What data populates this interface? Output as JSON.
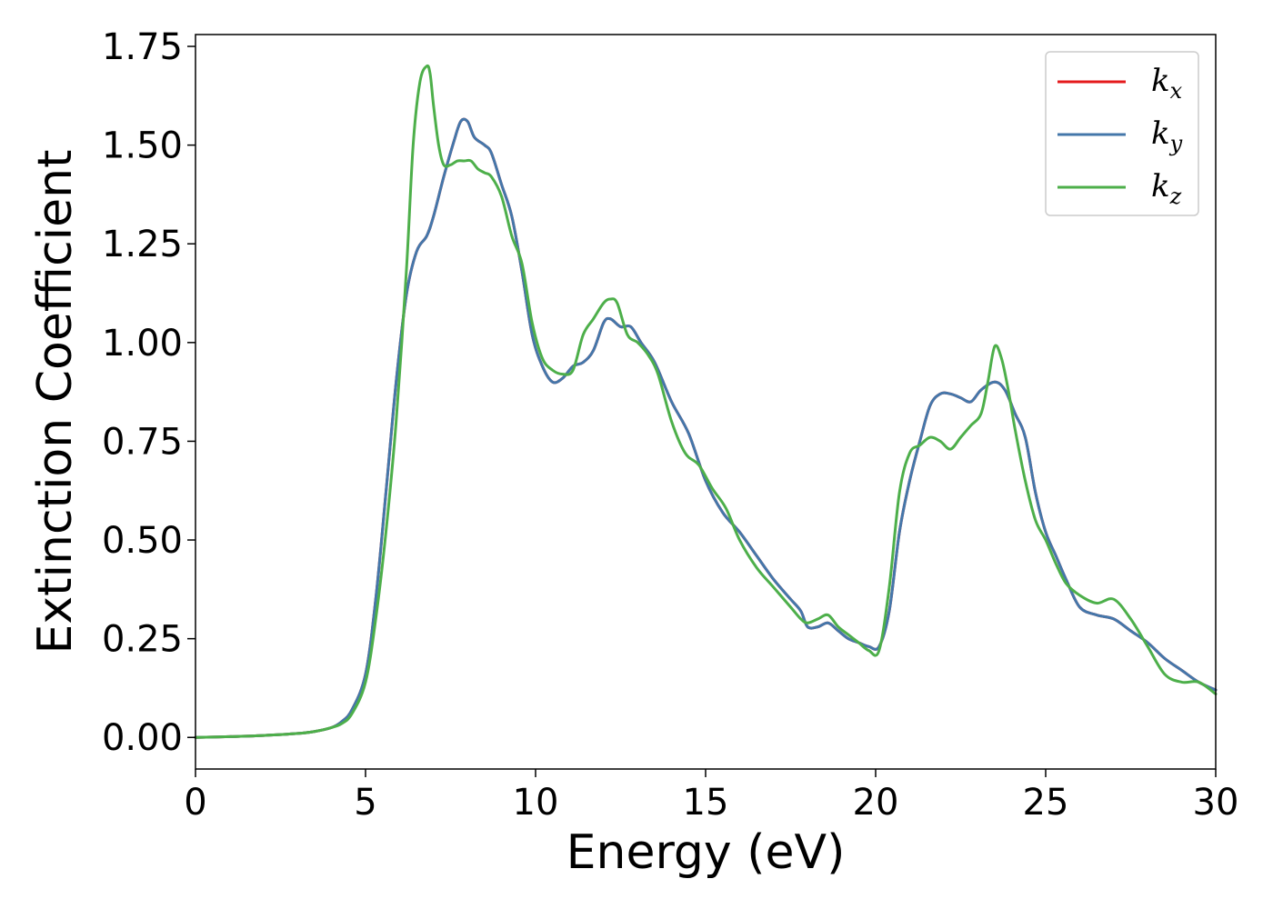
{
  "chart_data": {
    "type": "line",
    "xlabel": "Energy (eV)",
    "ylabel": "Extinction Coefficient",
    "xlim": [
      0,
      30
    ],
    "ylim": [
      -0.08,
      1.78
    ],
    "xticks": [
      0,
      5,
      10,
      15,
      20,
      25,
      30
    ],
    "xtick_labels": [
      "0",
      "5",
      "10",
      "15",
      "20",
      "25",
      "30"
    ],
    "yticks": [
      0,
      0.25,
      0.5,
      0.75,
      1.0,
      1.25,
      1.5,
      1.75
    ],
    "ytick_labels": [
      "0.00",
      "0.25",
      "0.50",
      "0.75",
      "1.00",
      "1.25",
      "1.50",
      "1.75"
    ],
    "grid": false,
    "legend_position": "top-right",
    "series": [
      {
        "name": "k",
        "subscript": "x",
        "color": "#e41a1c",
        "x": [
          0,
          1,
          2,
          3,
          3.5,
          4,
          4.3,
          4.6,
          5,
          5.3,
          5.6,
          5.9,
          6.2,
          6.5,
          6.8,
          7.0,
          7.3,
          7.6,
          7.8,
          8.0,
          8.2,
          8.5,
          8.7,
          9.0,
          9.3,
          9.6,
          9.9,
          10.2,
          10.5,
          10.8,
          11.1,
          11.4,
          11.7,
          12.0,
          12.2,
          12.5,
          12.8,
          13.1,
          13.5,
          14.0,
          14.5,
          15.0,
          15.5,
          16.0,
          16.5,
          17.0,
          17.5,
          17.8,
          18.0,
          18.3,
          18.6,
          18.9,
          19.2,
          19.5,
          19.8,
          20.1,
          20.4,
          20.7,
          21.0,
          21.3,
          21.6,
          21.9,
          22.2,
          22.5,
          22.8,
          23.1,
          23.5,
          23.8,
          24.1,
          24.4,
          24.7,
          25.0,
          25.3,
          25.6,
          26.0,
          26.5,
          27.0,
          27.5,
          28.0,
          28.5,
          29.0,
          29.5,
          30.0
        ],
        "y": [
          0.0,
          0.002,
          0.005,
          0.01,
          0.015,
          0.025,
          0.04,
          0.07,
          0.16,
          0.35,
          0.62,
          0.9,
          1.12,
          1.23,
          1.27,
          1.32,
          1.42,
          1.51,
          1.56,
          1.56,
          1.52,
          1.5,
          1.48,
          1.4,
          1.32,
          1.18,
          1.02,
          0.94,
          0.9,
          0.91,
          0.94,
          0.95,
          0.98,
          1.05,
          1.06,
          1.04,
          1.04,
          1.0,
          0.95,
          0.85,
          0.77,
          0.65,
          0.57,
          0.52,
          0.46,
          0.4,
          0.35,
          0.32,
          0.28,
          0.28,
          0.29,
          0.27,
          0.25,
          0.24,
          0.23,
          0.23,
          0.32,
          0.52,
          0.65,
          0.75,
          0.84,
          0.87,
          0.87,
          0.86,
          0.85,
          0.88,
          0.9,
          0.88,
          0.82,
          0.76,
          0.62,
          0.52,
          0.46,
          0.4,
          0.33,
          0.31,
          0.3,
          0.27,
          0.24,
          0.2,
          0.17,
          0.14,
          0.12
        ]
      },
      {
        "name": "k",
        "subscript": "y",
        "color": "#4477aa",
        "x": [
          0,
          1,
          2,
          3,
          3.5,
          4,
          4.3,
          4.6,
          5,
          5.3,
          5.6,
          5.9,
          6.2,
          6.5,
          6.8,
          7.0,
          7.3,
          7.6,
          7.8,
          8.0,
          8.2,
          8.5,
          8.7,
          9.0,
          9.3,
          9.6,
          9.9,
          10.2,
          10.5,
          10.8,
          11.1,
          11.4,
          11.7,
          12.0,
          12.2,
          12.5,
          12.8,
          13.1,
          13.5,
          14.0,
          14.5,
          15.0,
          15.5,
          16.0,
          16.5,
          17.0,
          17.5,
          17.8,
          18.0,
          18.3,
          18.6,
          18.9,
          19.2,
          19.5,
          19.8,
          20.1,
          20.4,
          20.7,
          21.0,
          21.3,
          21.6,
          21.9,
          22.2,
          22.5,
          22.8,
          23.1,
          23.5,
          23.8,
          24.1,
          24.4,
          24.7,
          25.0,
          25.3,
          25.6,
          26.0,
          26.5,
          27.0,
          27.5,
          28.0,
          28.5,
          29.0,
          29.5,
          30.0
        ],
        "y": [
          0.0,
          0.002,
          0.005,
          0.01,
          0.015,
          0.025,
          0.04,
          0.07,
          0.16,
          0.35,
          0.62,
          0.9,
          1.12,
          1.23,
          1.27,
          1.32,
          1.42,
          1.51,
          1.56,
          1.56,
          1.52,
          1.5,
          1.48,
          1.4,
          1.32,
          1.18,
          1.02,
          0.94,
          0.9,
          0.91,
          0.94,
          0.95,
          0.98,
          1.05,
          1.06,
          1.04,
          1.04,
          1.0,
          0.95,
          0.85,
          0.77,
          0.65,
          0.57,
          0.52,
          0.46,
          0.4,
          0.35,
          0.32,
          0.28,
          0.28,
          0.29,
          0.27,
          0.25,
          0.24,
          0.23,
          0.23,
          0.32,
          0.52,
          0.65,
          0.75,
          0.84,
          0.87,
          0.87,
          0.86,
          0.85,
          0.88,
          0.9,
          0.88,
          0.82,
          0.76,
          0.62,
          0.52,
          0.46,
          0.4,
          0.33,
          0.31,
          0.3,
          0.27,
          0.24,
          0.2,
          0.17,
          0.14,
          0.12
        ]
      },
      {
        "name": "k",
        "subscript": "z",
        "color": "#4daf4a",
        "x": [
          0,
          1,
          2,
          3,
          3.5,
          4,
          4.3,
          4.6,
          5,
          5.3,
          5.6,
          5.9,
          6.2,
          6.4,
          6.6,
          6.8,
          6.9,
          7.0,
          7.15,
          7.3,
          7.5,
          7.7,
          7.9,
          8.1,
          8.3,
          8.5,
          8.7,
          9.0,
          9.3,
          9.6,
          9.9,
          10.2,
          10.5,
          10.8,
          11.1,
          11.4,
          11.7,
          12.0,
          12.2,
          12.4,
          12.7,
          13.0,
          13.3,
          13.6,
          14.0,
          14.4,
          14.8,
          15.2,
          15.6,
          16.0,
          16.5,
          17.0,
          17.5,
          17.8,
          18.0,
          18.3,
          18.6,
          18.9,
          19.2,
          19.5,
          19.8,
          20.1,
          20.4,
          20.7,
          21.0,
          21.3,
          21.6,
          21.9,
          22.2,
          22.5,
          22.8,
          23.1,
          23.3,
          23.5,
          23.7,
          23.9,
          24.1,
          24.4,
          24.7,
          25.0,
          25.3,
          25.6,
          26.0,
          26.5,
          27.0,
          27.5,
          28.0,
          28.5,
          29.0,
          29.5,
          30.0
        ],
        "y": [
          0.0,
          0.002,
          0.005,
          0.01,
          0.015,
          0.025,
          0.035,
          0.06,
          0.14,
          0.3,
          0.52,
          0.8,
          1.18,
          1.5,
          1.66,
          1.7,
          1.68,
          1.6,
          1.5,
          1.45,
          1.45,
          1.46,
          1.46,
          1.46,
          1.44,
          1.43,
          1.42,
          1.37,
          1.27,
          1.2,
          1.05,
          0.96,
          0.93,
          0.92,
          0.93,
          1.02,
          1.06,
          1.1,
          1.11,
          1.1,
          1.02,
          1.0,
          0.97,
          0.92,
          0.8,
          0.72,
          0.69,
          0.63,
          0.58,
          0.5,
          0.43,
          0.38,
          0.33,
          0.3,
          0.29,
          0.3,
          0.31,
          0.28,
          0.26,
          0.24,
          0.22,
          0.22,
          0.38,
          0.62,
          0.72,
          0.74,
          0.76,
          0.75,
          0.73,
          0.76,
          0.79,
          0.82,
          0.9,
          0.99,
          0.96,
          0.88,
          0.78,
          0.65,
          0.55,
          0.5,
          0.44,
          0.39,
          0.36,
          0.34,
          0.35,
          0.3,
          0.23,
          0.16,
          0.14,
          0.14,
          0.11
        ]
      }
    ]
  }
}
